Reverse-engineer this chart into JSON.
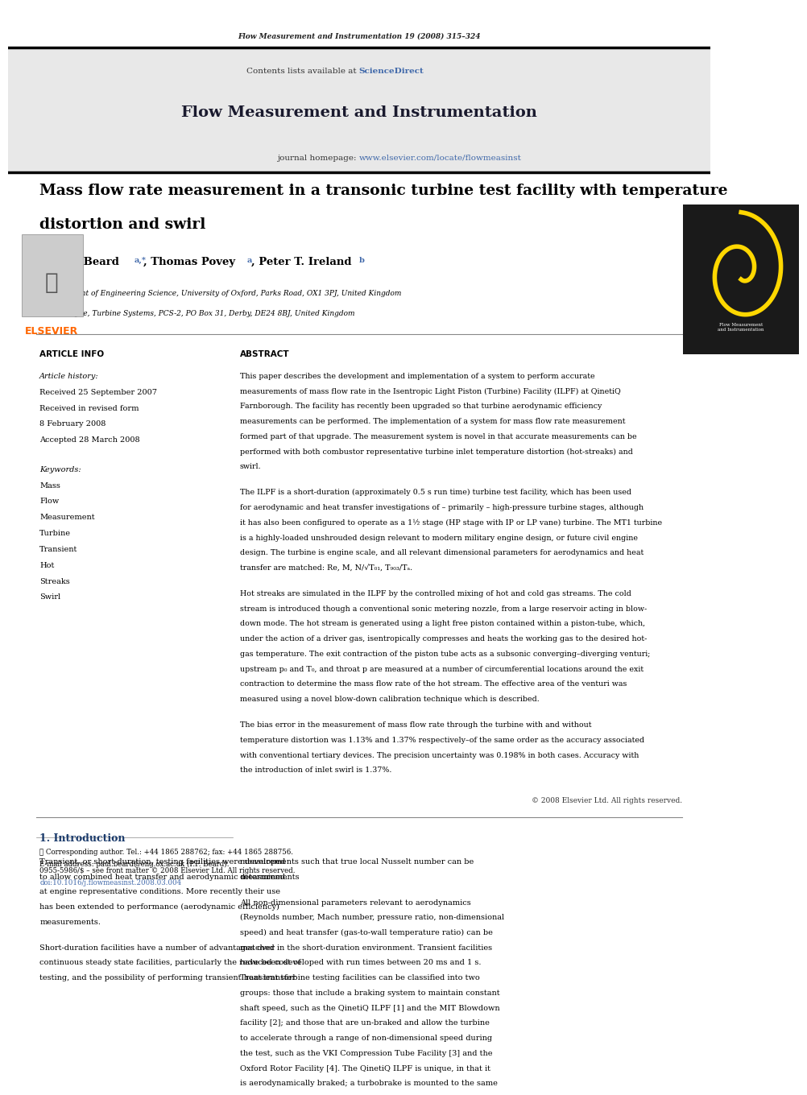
{
  "page_width": 9.92,
  "page_height": 13.23,
  "bg_color": "#ffffff",
  "journal_ref": "Flow Measurement and Instrumentation 19 (2008) 315–324",
  "header_bg": "#e8e8e8",
  "contents_text": "Contents lists available at ",
  "sciencedirect_text": "ScienceDirect",
  "sciencedirect_color": "#4169aa",
  "journal_title": "Flow Measurement and Instrumentation",
  "journal_homepage_prefix": "journal homepage: ",
  "journal_url": "www.elsevier.com/locate/flowmeasinst",
  "url_color": "#4169aa",
  "elsevier_color": "#FF6600",
  "paper_title_line1": "Mass flow rate measurement in a transonic turbine test facility with temperature",
  "paper_title_line2": "distortion and swirl",
  "authors": "Paul F. Beardᵃ*, Thomas Poveyᵃ, Peter T. Ireland ᵇ",
  "affil_a": "ᵃ Department of Engineering Science, University of Oxford, Parks Road, OX1 3PJ, United Kingdom",
  "affil_b": "ᵇ Rolls-Royce, Turbine Systems, PCS-2, PO Box 31, Derby, DE24 8BJ, United Kingdom",
  "article_info_title": "ARTICLE INFO",
  "article_history_title": "Article history:",
  "received1": "Received 25 September 2007",
  "received2": "Received in revised form",
  "date2": "8 February 2008",
  "accepted": "Accepted 28 March 2008",
  "keywords_title": "Keywords:",
  "keywords": [
    "Mass",
    "Flow",
    "Measurement",
    "Turbine",
    "Transient",
    "Hot",
    "Streaks",
    "Swirl"
  ],
  "abstract_title": "ABSTRACT",
  "abstract_p1": "This paper describes the development and implementation of a system to perform accurate\nmeasurements of mass flow rate in the Isentropic Light Piston (Turbine) Facility (ILPF) at QinetiQ\nFarnborough. The facility has recently been upgraded so that turbine aerodynamic efficiency\nmeasurements can be performed. The implementation of a system for mass flow rate measurement\nformed part of that upgrade. The measurement system is novel in that accurate measurements can be\nperformed with both combustor representative turbine inlet temperature distortion (hot-streaks) and\nswirl.",
  "abstract_p2": "The ILPF is a short-duration (approximately 0.5 s run time) turbine test facility, which has been used\nfor aerodynamic and heat transfer investigations of – primarily – high-pressure turbine stages, although\nit has also been configured to operate as a 1½ stage (HP stage with IP or LP vane) turbine. The MT1 turbine\nis a highly-loaded unshrouded design relevant to modern military engine design, or future civil engine\ndesign. The turbine is engine scale, and all relevant dimensional parameters for aerodynamics and heat\ntransfer are matched: Re, M, N/√T₀₁, T₉₀₃/Tₐ⁠⁡⁢⁣.",
  "abstract_p3": "Hot streaks are simulated in the ILPF by the controlled mixing of hot and cold gas streams. The cold\nstream is introduced though a conventional sonic metering nozzle, from a large reservoir acting in blow-\ndown mode. The hot stream is generated using a light free piston contained within a piston-tube, which,\nunder the action of a driver gas, isentropically compresses and heats the working gas to the desired hot-\ngas temperature. The exit contraction of the piston tube acts as a subsonic converging–diverging venturi;\nupstream p₀ and T₀, and throat p are measured at a number of circumferential locations around the exit\ncontraction to determine the mass flow rate of the hot stream. The effective area of the venturi was\nmeasured using a novel blow-down calibration technique which is described.",
  "abstract_p4": "The bias error in the measurement of mass flow rate through the turbine with and without\ntemperature distortion was 1.13% and 1.37% respectively–of the same order as the accuracy associated\nwith conventional tertiary devices. The precision uncertainty was 0.198% in both cases. Accuracy with\nthe introduction of inlet swirl is 1.37%.",
  "copyright": "© 2008 Elsevier Ltd. All rights reserved.",
  "section1_title": "1. Introduction",
  "intro_p1": "Transient, or short-duration, testing facilities were developed\nto allow combined heat transfer and aerodynamic measurements\nat engine representative conditions. More recently their use\nhas been extended to performance (aerodynamic efficiency)\nmeasurements.",
  "intro_p2": "Short-duration facilities have a number of advantages over\ncontinuous steady state facilities, particularly the reduced cost of\ntesting, and the possibility of performing transient heat transfer",
  "right_col_p1": "measurements such that true local Nusselt number can be\ndetermined.",
  "right_col_p2": "All non-dimensional parameters relevant to aerodynamics\n(Reynolds number, Mach number, pressure ratio, non-dimensional\nspeed) and heat transfer (gas-to-wall temperature ratio) can be\nmatched in the short-duration environment. Transient facilities\nhave been developed with run times between 20 ms and 1 s.\nTransient turbine testing facilities can be classified into two\ngroups: those that include a braking system to maintain constant\nshaft speed, such as the QinetiQ ILPF [1] and the MIT Blowdown\nfacility [2]; and those that are un-braked and allow the turbine\nto accelerate through a range of non-dimensional speed during\nthe test, such as the VKI Compression Tube Facility [3] and the\nOxford Rotor Facility [4]. The QinetiQ ILPF is unique, in that it\nis aerodynamically braked; a turbobrake is mounted to the same",
  "footnote_star": "★ Corresponding author. Tel.: +44 1865 288762; fax: +44 1865 288756.",
  "footnote_email": "E-mail address: paul.beard@eng.ox.ac.uk (P.F. Beard).",
  "footer_issn": "0955-5986/$ – see front matter © 2008 Elsevier Ltd. All rights reserved.",
  "footer_doi": "doi:10.1016/j.flowmeasinst.2008.03.004"
}
